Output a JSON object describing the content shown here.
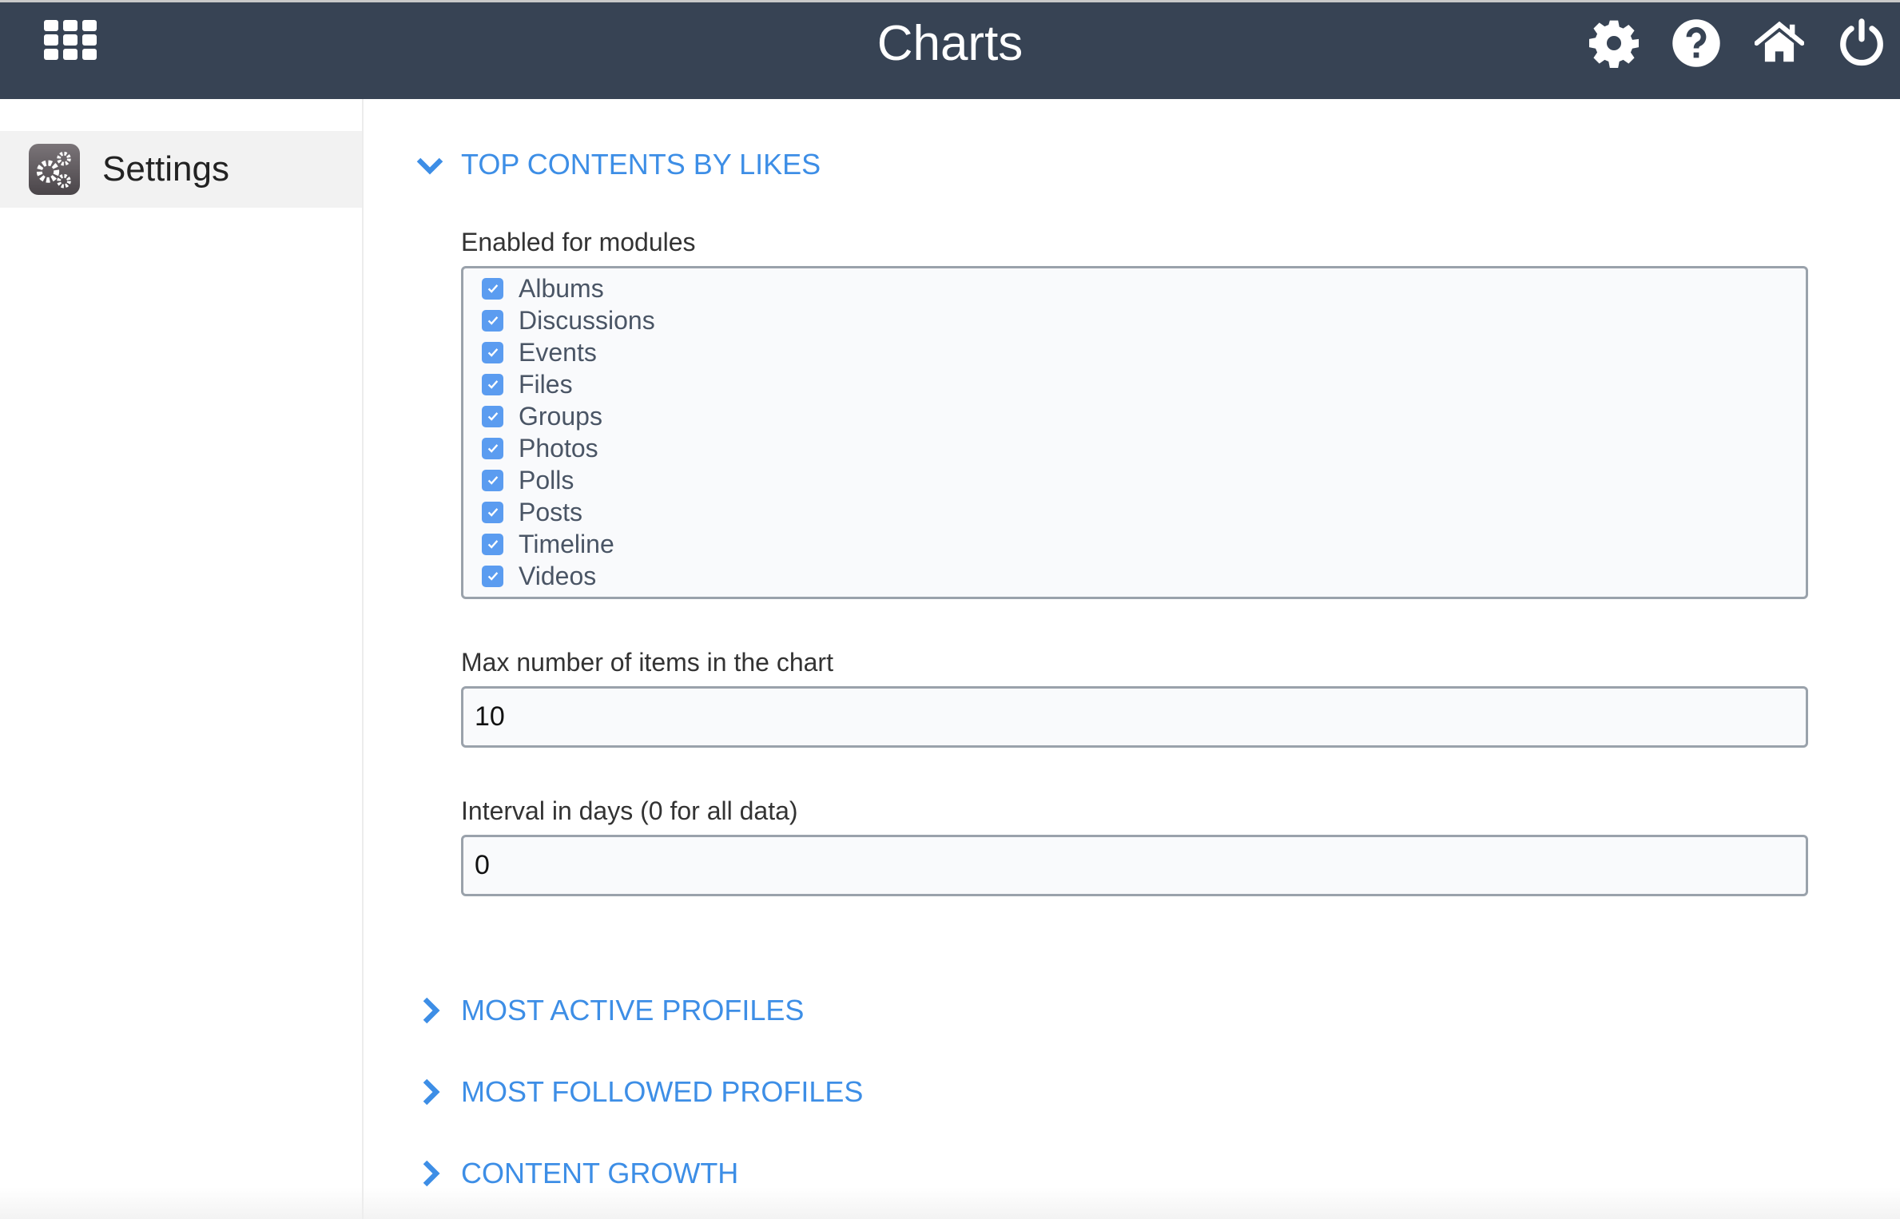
{
  "header": {
    "title": "Charts",
    "icons": [
      "apps-grid-icon",
      "settings-gear-icon",
      "help-icon",
      "home-icon",
      "power-icon"
    ]
  },
  "sidebar": {
    "items": [
      {
        "label": "Settings",
        "icon": "settings-gears-icon"
      }
    ]
  },
  "main": {
    "expanded_section": {
      "title": "TOP CONTENTS BY LIKES",
      "modules_label": "Enabled for modules",
      "modules": [
        {
          "label": "Albums",
          "checked": true
        },
        {
          "label": "Discussions",
          "checked": true
        },
        {
          "label": "Events",
          "checked": true
        },
        {
          "label": "Files",
          "checked": true
        },
        {
          "label": "Groups",
          "checked": true
        },
        {
          "label": "Photos",
          "checked": true
        },
        {
          "label": "Polls",
          "checked": true
        },
        {
          "label": "Posts",
          "checked": true
        },
        {
          "label": "Timeline",
          "checked": true
        },
        {
          "label": "Videos",
          "checked": true
        }
      ],
      "max_items_label": "Max number of items in the chart",
      "max_items_value": "10",
      "interval_label": "Interval in days (0 for all data)",
      "interval_value": "0"
    },
    "collapsed_sections": [
      {
        "title": "MOST ACTIVE PROFILES"
      },
      {
        "title": "MOST FOLLOWED PROFILES"
      },
      {
        "title": "CONTENT GROWTH"
      }
    ]
  },
  "colors": {
    "header": "#374354",
    "accent": "#3d8ee6",
    "checkbox": "#5b9cf0"
  }
}
